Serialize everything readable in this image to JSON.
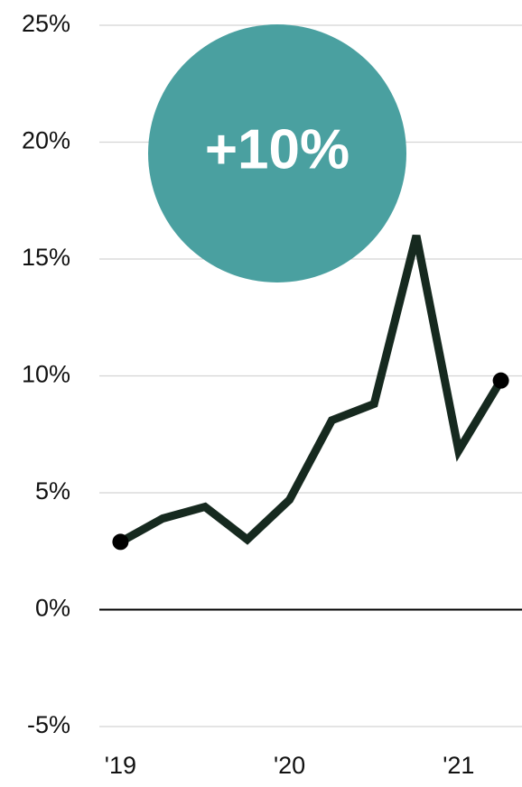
{
  "chart_data": {
    "type": "line",
    "categories": [
      "'19",
      null,
      null,
      null,
      "'20",
      null,
      null,
      null,
      "'21",
      null
    ],
    "series": [
      {
        "color": "#16291f",
        "values": [
          2.9,
          3.9,
          4.4,
          3.0,
          4.7,
          8.1,
          8.8,
          16.0,
          6.8,
          9.8
        ]
      }
    ],
    "ylim": [
      -5,
      25
    ],
    "yticks": [
      {
        "value": -5,
        "label": "-5%"
      },
      {
        "value": 0,
        "label": "0%"
      },
      {
        "value": 5,
        "label": "5%"
      },
      {
        "value": 10,
        "label": "10%"
      },
      {
        "value": 15,
        "label": "15%"
      },
      {
        "value": 20,
        "label": "20%"
      },
      {
        "value": 25,
        "label": "25%"
      }
    ],
    "grid": true,
    "annotation": "+10%",
    "annotation_color": "#4aa0a0"
  }
}
